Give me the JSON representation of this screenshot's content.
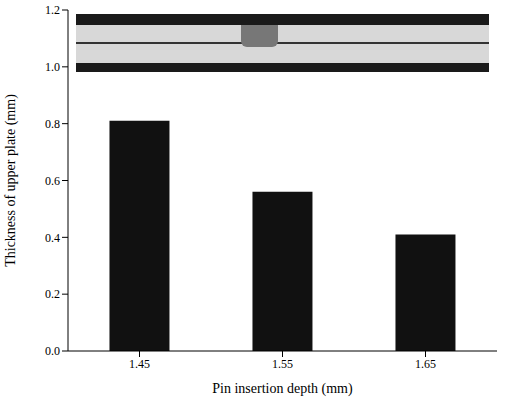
{
  "chart_data": {
    "type": "bar",
    "categories": [
      "1.45",
      "1.55",
      "1.65"
    ],
    "values": [
      0.81,
      0.56,
      0.41
    ],
    "color": "#111111",
    "x_label": "Pin insertion depth (mm)",
    "y_label": "Thickness of upper plate (mm)",
    "ylim": [
      0,
      1.2
    ],
    "yticks": [
      {
        "value": 0,
        "label": "0.0"
      },
      0.2,
      0.4,
      0.6,
      0.8,
      {
        "value": 1,
        "label": "1.0"
      },
      1.2
    ],
    "grid": false
  }
}
